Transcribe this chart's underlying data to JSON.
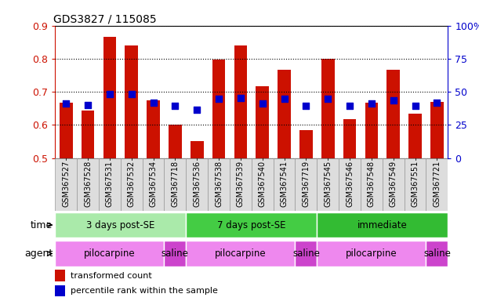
{
  "title": "GDS3827 / 115085",
  "samples": [
    "GSM367527",
    "GSM367528",
    "GSM367531",
    "GSM367532",
    "GSM367534",
    "GSM367718",
    "GSM367536",
    "GSM367538",
    "GSM367539",
    "GSM367540",
    "GSM367541",
    "GSM367719",
    "GSM367545",
    "GSM367546",
    "GSM367548",
    "GSM367549",
    "GSM367551",
    "GSM367721"
  ],
  "red_values": [
    0.667,
    0.643,
    0.865,
    0.84,
    0.675,
    0.6,
    0.551,
    0.797,
    0.84,
    0.718,
    0.766,
    0.585,
    0.8,
    0.617,
    0.667,
    0.766,
    0.635,
    0.67
  ],
  "blue_values": [
    0.665,
    0.66,
    0.693,
    0.692,
    0.666,
    0.657,
    0.647,
    0.68,
    0.682,
    0.664,
    0.678,
    0.657,
    0.678,
    0.657,
    0.665,
    0.675,
    0.657,
    0.667
  ],
  "ymin": 0.5,
  "ymax": 0.9,
  "yticks": [
    0.5,
    0.6,
    0.7,
    0.8,
    0.9
  ],
  "right_yticks": [
    0,
    25,
    50,
    75,
    100
  ],
  "right_yticklabels": [
    "0",
    "25",
    "50",
    "75",
    "100%"
  ],
  "bar_color": "#CC1100",
  "dot_color": "#0000CC",
  "time_groups": [
    {
      "label": "3 days post-SE",
      "start": 0,
      "end": 5,
      "color": "#AAEAAA"
    },
    {
      "label": "7 days post-SE",
      "start": 6,
      "end": 11,
      "color": "#44CC44"
    },
    {
      "label": "immediate",
      "start": 12,
      "end": 17,
      "color": "#33BB33"
    }
  ],
  "agent_groups": [
    {
      "label": "pilocarpine",
      "start": 0,
      "end": 4,
      "color": "#EE88EE"
    },
    {
      "label": "saline",
      "start": 5,
      "end": 5,
      "color": "#CC44CC"
    },
    {
      "label": "pilocarpine",
      "start": 6,
      "end": 10,
      "color": "#EE88EE"
    },
    {
      "label": "saline",
      "start": 11,
      "end": 11,
      "color": "#CC44CC"
    },
    {
      "label": "pilocarpine",
      "start": 12,
      "end": 16,
      "color": "#EE88EE"
    },
    {
      "label": "saline",
      "start": 17,
      "end": 17,
      "color": "#CC44CC"
    }
  ],
  "legend_red": "transformed count",
  "legend_blue": "percentile rank within the sample",
  "bar_width": 0.6,
  "dot_size": 40,
  "xticklabel_bg": "#DDDDDD",
  "xticklabel_border": "#999999"
}
